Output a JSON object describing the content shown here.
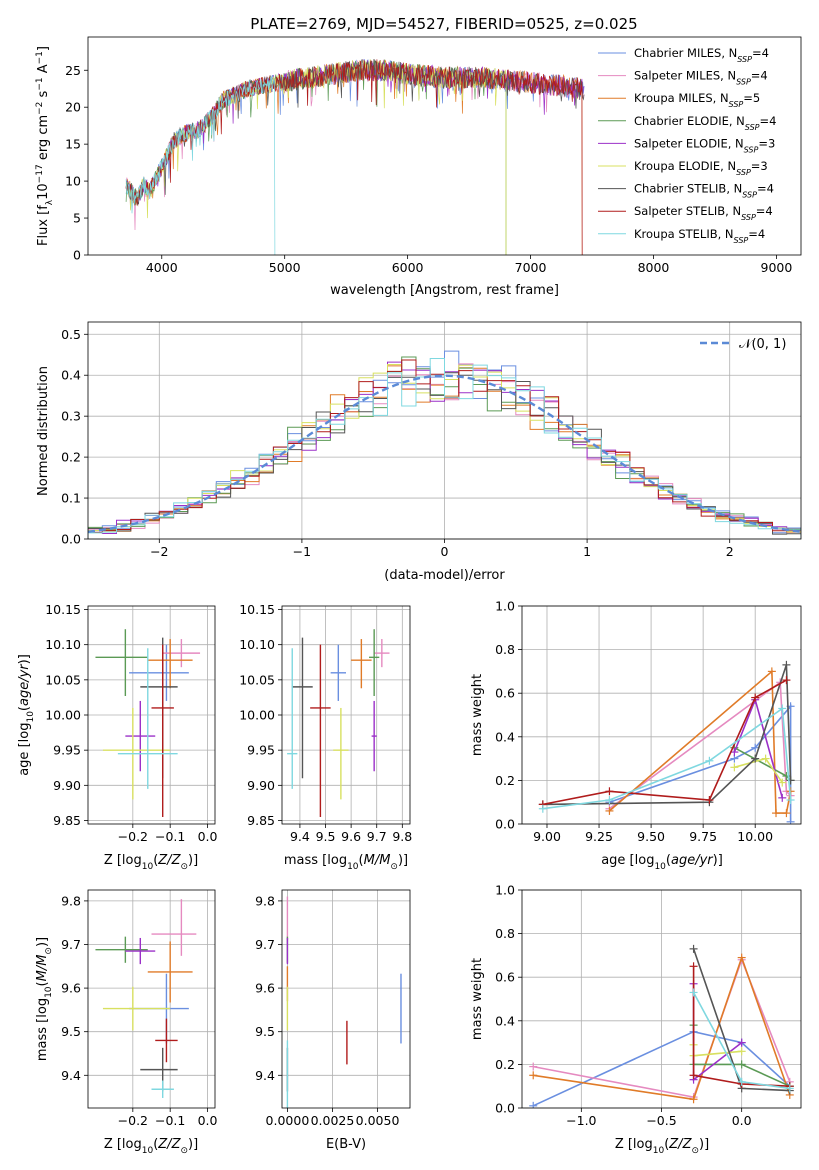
{
  "figure": {
    "title": "PLATE=2769, MJD=54527, FIBERID=0525, z=0.025"
  },
  "colors": {
    "series": [
      "#6a8fe0",
      "#e58ac0",
      "#e07b28",
      "#5b9a55",
      "#9b30c8",
      "#d8e060",
      "#555555",
      "#b01c1c",
      "#7fd8e0"
    ]
  },
  "chart_data": [
    {
      "id": "spectrum",
      "type": "line",
      "xlabel": "wavelength [Angstrom, rest frame]",
      "ylabel": "Flux [f_λ10^-17 erg cm^-2 s^-1 A^-1]",
      "xlim": [
        3400,
        9200
      ],
      "ylim": [
        0,
        29.5
      ],
      "xticks": [
        4000,
        5000,
        6000,
        7000,
        8000,
        9000
      ],
      "yticks": [
        0,
        5,
        10,
        15,
        20,
        25
      ],
      "grid": false,
      "legend_position": "top-right",
      "continuum": {
        "x": [
          3710,
          3800,
          3850,
          3900,
          4000,
          4100,
          4200,
          4300,
          4400,
          4500,
          4700,
          5000,
          5200,
          5400,
          5600,
          5800,
          6000,
          6300,
          6600,
          6900,
          7200,
          7400
        ],
        "y": [
          9.5,
          7.5,
          9.5,
          8.5,
          12.0,
          15.5,
          16.5,
          17.0,
          18.5,
          21.0,
          22.5,
          23.5,
          24.0,
          24.5,
          25.0,
          25.0,
          24.5,
          24.0,
          24.0,
          23.5,
          23.0,
          22.5
        ]
      },
      "series": [
        {
          "name": "Chabrier MILES, N_SSP=4"
        },
        {
          "name": "Salpeter MILES, N_SSP=4"
        },
        {
          "name": "Kroupa MILES, N_SSP=5",
          "drop_at": 7420
        },
        {
          "name": "Chabrier ELODIE, N_SSP=4",
          "drop_at": 6800
        },
        {
          "name": "Salpeter ELODIE, N_SSP=3"
        },
        {
          "name": "Kroupa ELODIE, N_SSP=3",
          "drop_at": 6800
        },
        {
          "name": "Chabrier STELIB, N_SSP=4"
        },
        {
          "name": "Salpeter STELIB, N_SSP=4",
          "drop_at": 7420
        },
        {
          "name": "Kroupa STELIB, N_SSP=4",
          "drop_at": 4920
        }
      ],
      "legend": [
        {
          "pre": "Chabrier MILES, N",
          "sub": "SSP",
          "post": "=4"
        },
        {
          "pre": "Salpeter MILES, N",
          "sub": "SSP",
          "post": "=4"
        },
        {
          "pre": "Kroupa MILES, N",
          "sub": "SSP",
          "post": "=5"
        },
        {
          "pre": "Chabrier ELODIE, N",
          "sub": "SSP",
          "post": "=4"
        },
        {
          "pre": "Salpeter ELODIE, N",
          "sub": "SSP",
          "post": "=3"
        },
        {
          "pre": "Kroupa ELODIE, N",
          "sub": "SSP",
          "post": "=3"
        },
        {
          "pre": "Chabrier STELIB, N",
          "sub": "SSP",
          "post": "=4"
        },
        {
          "pre": "Salpeter STELIB, N",
          "sub": "SSP",
          "post": "=4"
        },
        {
          "pre": "Kroupa STELIB, N",
          "sub": "SSP",
          "post": "=4"
        }
      ]
    },
    {
      "id": "residuals",
      "type": "histogram",
      "xlabel": "(data-model)/error",
      "ylabel": "Normed distribution",
      "xlim": [
        -2.5,
        2.5
      ],
      "ylim": [
        0,
        0.53
      ],
      "xticks": [
        -2,
        -1,
        0,
        1,
        2
      ],
      "yticks": [
        0.0,
        0.1,
        0.2,
        0.3,
        0.4,
        0.5
      ],
      "grid": true,
      "bin_width": 0.1,
      "legend_position": "top-right",
      "legend": "𝒩(0, 1)",
      "reference_curve": "normal(0,1)"
    },
    {
      "id": "age_vs_Z",
      "type": "errorbar",
      "xlabel": "Z [log10(Z/Z⊙)]",
      "ylabel": "age  [log10(age/yr)]",
      "xlim": [
        -0.32,
        0.02
      ],
      "ylim": [
        9.845,
        10.155
      ],
      "xticks": [
        -0.2,
        -0.1,
        0.0
      ],
      "xticklabels": [
        "−0.2",
        "−0.1",
        "0.0"
      ],
      "yticks": [
        9.85,
        9.9,
        9.95,
        10.0,
        10.05,
        10.1,
        10.15
      ],
      "grid": true,
      "points": [
        {
          "x": -0.11,
          "y": 10.06,
          "xerr": [
            0.1,
            0.06
          ],
          "yerr": [
            0.04,
            0.04
          ]
        },
        {
          "x": -0.07,
          "y": 10.088,
          "xerr": [
            0.05,
            0.05
          ],
          "yerr": [
            0.02,
            0.02
          ]
        },
        {
          "x": -0.1,
          "y": 10.078,
          "xerr": [
            0.06,
            0.06
          ],
          "yerr": [
            0.04,
            0.03
          ]
        },
        {
          "x": -0.22,
          "y": 10.082,
          "xerr": [
            0.08,
            0.06
          ],
          "yerr": [
            0.055,
            0.04
          ]
        },
        {
          "x": -0.18,
          "y": 9.97,
          "xerr": [
            0.04,
            0.04
          ],
          "yerr": [
            0.05,
            0.05
          ]
        },
        {
          "x": -0.2,
          "y": 9.95,
          "xerr": [
            0.08,
            0.1
          ],
          "yerr": [
            0.07,
            0.06
          ]
        },
        {
          "x": -0.12,
          "y": 10.04,
          "xerr": [
            0.06,
            0.04
          ],
          "yerr": [
            0.13,
            0.07
          ]
        },
        {
          "x": -0.12,
          "y": 10.01,
          "xerr": [
            0.03,
            0.03
          ],
          "yerr": [
            0.155,
            0.09
          ]
        },
        {
          "x": -0.16,
          "y": 9.945,
          "xerr": [
            0.08,
            0.08
          ],
          "yerr": [
            0.05,
            0.15
          ]
        }
      ]
    },
    {
      "id": "age_vs_mass",
      "type": "errorbar",
      "xlabel": "mass [log10(M/M⊙)]",
      "ylabel": "",
      "xlim": [
        9.33,
        9.83
      ],
      "ylim": [
        9.845,
        10.155
      ],
      "xticks": [
        9.4,
        9.5,
        9.6,
        9.7,
        9.8
      ],
      "yticks": [
        9.85,
        9.9,
        9.95,
        10.0,
        10.05,
        10.1,
        10.15
      ],
      "grid": true,
      "points": [
        {
          "x": 9.55,
          "y": 10.06,
          "xerr": [
            0.03,
            0.03
          ],
          "yerr": [
            0.04,
            0.04
          ]
        },
        {
          "x": 9.72,
          "y": 10.088,
          "xerr": [
            0.03,
            0.03
          ],
          "yerr": [
            0.02,
            0.02
          ]
        },
        {
          "x": 9.64,
          "y": 10.078,
          "xerr": [
            0.04,
            0.04
          ],
          "yerr": [
            0.04,
            0.03
          ]
        },
        {
          "x": 9.69,
          "y": 10.082,
          "xerr": [
            0.02,
            0.02
          ],
          "yerr": [
            0.055,
            0.04
          ]
        },
        {
          "x": 9.69,
          "y": 9.97,
          "xerr": [
            0.01,
            0.01
          ],
          "yerr": [
            0.05,
            0.05
          ]
        },
        {
          "x": 9.56,
          "y": 9.95,
          "xerr": [
            0.03,
            0.03
          ],
          "yerr": [
            0.07,
            0.06
          ]
        },
        {
          "x": 9.41,
          "y": 10.04,
          "xerr": [
            0.04,
            0.04
          ],
          "yerr": [
            0.13,
            0.07
          ]
        },
        {
          "x": 9.48,
          "y": 10.01,
          "xerr": [
            0.04,
            0.04
          ],
          "yerr": [
            0.155,
            0.09
          ]
        },
        {
          "x": 9.37,
          "y": 9.945,
          "xerr": [
            0.02,
            0.02
          ],
          "yerr": [
            0.05,
            0.15
          ]
        }
      ]
    },
    {
      "id": "weight_vs_age",
      "type": "line",
      "xlabel": "age  [log10(age/yr)]",
      "ylabel": "mass weight",
      "xlim": [
        8.88,
        10.22
      ],
      "ylim": [
        0,
        1.0
      ],
      "xticks": [
        9.0,
        9.25,
        9.5,
        9.75,
        10.0
      ],
      "xticklabels": [
        "9.00",
        "9.25",
        "9.50",
        "9.75",
        "10.00"
      ],
      "yticks": [
        0.0,
        0.2,
        0.4,
        0.6,
        0.8,
        1.0
      ],
      "grid": true,
      "series": [
        {
          "x": [
            9.3,
            9.9,
            10.0,
            10.17,
            10.17
          ],
          "y": [
            0.1,
            0.3,
            0.35,
            0.54,
            0.01
          ]
        },
        {
          "x": [
            9.3,
            10.12,
            10.15,
            10.17
          ],
          "y": [
            0.07,
            0.65,
            0.15,
            0.13
          ]
        },
        {
          "x": [
            9.3,
            10.08,
            10.1,
            10.15,
            10.17
          ],
          "y": [
            0.06,
            0.7,
            0.05,
            0.05,
            0.15
          ]
        },
        {
          "x": [
            9.9,
            10.15,
            10.17
          ],
          "y": [
            0.35,
            0.22,
            0.2
          ]
        },
        {
          "x": [
            9.9,
            10.0,
            10.13
          ],
          "y": [
            0.33,
            0.57,
            0.12
          ]
        },
        {
          "x": [
            9.9,
            10.05,
            10.13
          ],
          "y": [
            0.26,
            0.3,
            0.19
          ]
        },
        {
          "x": [
            8.98,
            9.78,
            10.0,
            10.15,
            10.17
          ],
          "y": [
            0.09,
            0.1,
            0.3,
            0.73,
            0.2
          ]
        },
        {
          "x": [
            8.98,
            9.3,
            9.78,
            10.0,
            10.15
          ],
          "y": [
            0.09,
            0.15,
            0.11,
            0.58,
            0.66
          ]
        },
        {
          "x": [
            8.98,
            9.3,
            9.78,
            10.13,
            10.17
          ],
          "y": [
            0.07,
            0.11,
            0.29,
            0.53,
            0.11
          ]
        }
      ]
    },
    {
      "id": "mass_vs_Z",
      "type": "errorbar",
      "xlabel": "Z [log10(Z/Z⊙)]",
      "ylabel": "mass [log10(M/M⊙)]",
      "xlim": [
        -0.32,
        0.02
      ],
      "ylim": [
        9.325,
        9.825
      ],
      "xticks": [
        -0.2,
        -0.1,
        0.0
      ],
      "xticklabels": [
        "−0.2",
        "−0.1",
        "0.0"
      ],
      "yticks": [
        9.4,
        9.5,
        9.6,
        9.7,
        9.8
      ],
      "grid": true,
      "points": [
        {
          "x": -0.11,
          "y": 9.553,
          "xerr": [
            0.1,
            0.06
          ],
          "yerr": [
            0.08,
            0.08
          ]
        },
        {
          "x": -0.07,
          "y": 9.724,
          "xerr": [
            0.08,
            0.04
          ],
          "yerr": [
            0.05,
            0.08
          ]
        },
        {
          "x": -0.1,
          "y": 9.637,
          "xerr": [
            0.06,
            0.06
          ],
          "yerr": [
            0.07,
            0.07
          ]
        },
        {
          "x": -0.22,
          "y": 9.688,
          "xerr": [
            0.08,
            0.06
          ],
          "yerr": [
            0.03,
            0.03
          ]
        },
        {
          "x": -0.18,
          "y": 9.685,
          "xerr": [
            0.04,
            0.04
          ],
          "yerr": [
            0.03,
            0.03
          ]
        },
        {
          "x": -0.2,
          "y": 9.553,
          "xerr": [
            0.08,
            0.1
          ],
          "yerr": [
            0.05,
            0.05
          ]
        },
        {
          "x": -0.12,
          "y": 9.413,
          "xerr": [
            0.06,
            0.04
          ],
          "yerr": [
            0.05,
            0.05
          ]
        },
        {
          "x": -0.11,
          "y": 9.48,
          "xerr": [
            0.03,
            0.03
          ],
          "yerr": [
            0.05,
            0.05
          ]
        },
        {
          "x": -0.12,
          "y": 9.368,
          "xerr": [
            0.03,
            0.03
          ],
          "yerr": [
            0.02,
            0.02
          ]
        }
      ]
    },
    {
      "id": "mass_vs_ebv",
      "type": "errorbar",
      "xlabel": "E(B-V)",
      "ylabel": "",
      "xlim": [
        -0.0003,
        0.0068
      ],
      "ylim": [
        9.325,
        9.825
      ],
      "xticks": [
        0.0,
        0.0025,
        0.005
      ],
      "xticklabels": [
        "0.0000",
        "0.0025",
        "0.0050"
      ],
      "yticks": [
        9.4,
        9.5,
        9.6,
        9.7,
        9.8
      ],
      "grid": true,
      "points": [
        {
          "x": 0.0063,
          "y": 9.553,
          "yerr": [
            0.08,
            0.08
          ]
        },
        {
          "x": 0.0,
          "y": 9.76,
          "yerr": [
            0.05,
            0.05
          ]
        },
        {
          "x": 0.0,
          "y": 9.61,
          "yerr": [
            0.04,
            0.04
          ]
        },
        {
          "x": 0.0,
          "y": 9.688,
          "yerr": [
            0.03,
            0.03
          ]
        },
        {
          "x": 0.0,
          "y": 9.685,
          "yerr": [
            0.03,
            0.03
          ]
        },
        {
          "x": 0.0,
          "y": 9.553,
          "yerr": [
            0.05,
            0.05
          ]
        },
        {
          "x": 0.0,
          "y": 9.413,
          "yerr": [
            0.05,
            0.05
          ]
        },
        {
          "x": 0.0033,
          "y": 9.475,
          "yerr": [
            0.05,
            0.05
          ]
        },
        {
          "x": 0.0,
          "y": 9.4,
          "yerr": [
            0.08,
            0.08
          ]
        }
      ]
    },
    {
      "id": "weight_vs_Z",
      "type": "line",
      "xlabel": "Z [log10(Z/Z⊙)]",
      "ylabel": "mass weight",
      "xlim": [
        -1.37,
        0.37
      ],
      "ylim": [
        0,
        1.0
      ],
      "xticks": [
        -1.0,
        -0.5,
        0.0
      ],
      "xticklabels": [
        "−1.0",
        "−0.5",
        "0.0"
      ],
      "yticks": [
        0.0,
        0.2,
        0.4,
        0.6,
        0.8,
        1.0
      ],
      "grid": true,
      "series": [
        {
          "x": [
            -1.3,
            -0.3,
            0.0,
            0.3
          ],
          "y": [
            0.01,
            0.35,
            0.3,
            0.1
          ]
        },
        {
          "x": [
            -1.3,
            -0.3,
            0.0,
            0.3
          ],
          "y": [
            0.19,
            0.05,
            0.68,
            0.12
          ]
        },
        {
          "x": [
            -1.3,
            -0.3,
            0.0,
            0.3
          ],
          "y": [
            0.15,
            0.04,
            0.69,
            0.06
          ]
        },
        {
          "x": [
            -0.3,
            -0.3,
            0.0,
            0.3
          ],
          "y": [
            0.38,
            0.2,
            0.2,
            0.1
          ]
        },
        {
          "x": [
            -0.3,
            -0.3,
            0.0
          ],
          "y": [
            0.57,
            0.13,
            0.3
          ]
        },
        {
          "x": [
            -0.3,
            -0.3,
            0.0
          ],
          "y": [
            0.29,
            0.24,
            0.26
          ]
        },
        {
          "x": [
            -0.3,
            0.0,
            0.3
          ],
          "y": [
            0.73,
            0.09,
            0.08
          ]
        },
        {
          "x": [
            -0.3,
            -0.3,
            0.0,
            0.3
          ],
          "y": [
            0.65,
            0.15,
            0.11,
            0.1
          ]
        },
        {
          "x": [
            -0.3,
            0.0,
            0.3
          ],
          "y": [
            0.53,
            0.12,
            0.09
          ]
        }
      ]
    }
  ]
}
